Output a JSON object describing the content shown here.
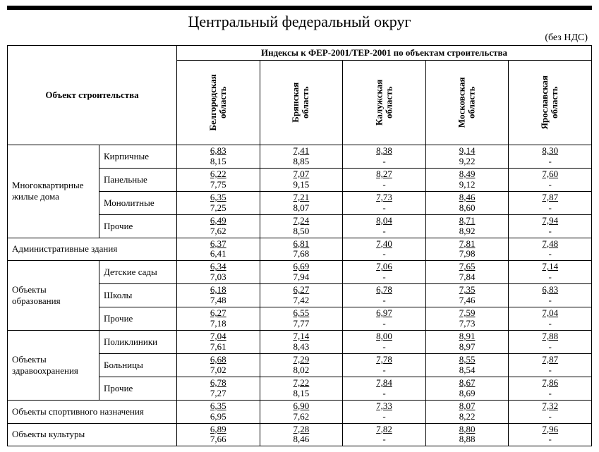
{
  "title": "Центральный федеральный округ",
  "note": "(без НДС)",
  "headers": {
    "object": "Объект строительства",
    "indices": "Индексы к ФЕР-2001/ТЕР-2001 по объектам строительства",
    "regions": [
      "Белгородская область",
      "Брянская область",
      "Калужская область",
      "Московская область",
      "Ярославская область"
    ]
  },
  "groups": [
    {
      "name": "Многоквартирные жилые дома",
      "rows": [
        {
          "sub": "Кирпичные",
          "vals": [
            [
              "6,83",
              "8,15"
            ],
            [
              "7,41",
              "8,85"
            ],
            [
              "8,38",
              "-"
            ],
            [
              "9,14",
              "9,22"
            ],
            [
              "8,30",
              "-"
            ]
          ]
        },
        {
          "sub": "Панельные",
          "vals": [
            [
              "6,22",
              "7,75"
            ],
            [
              "7,07",
              "9,15"
            ],
            [
              "8,27",
              "-"
            ],
            [
              "8,49",
              "9,12"
            ],
            [
              "7,60",
              "-"
            ]
          ]
        },
        {
          "sub": "Монолитные",
          "vals": [
            [
              "6,35",
              "7,25"
            ],
            [
              "7,21",
              "8,07"
            ],
            [
              "7,73",
              "-"
            ],
            [
              "8,46",
              "8,60"
            ],
            [
              "7,87",
              "-"
            ]
          ]
        },
        {
          "sub": "Прочие",
          "vals": [
            [
              "6,49",
              "7,62"
            ],
            [
              "7,24",
              "8,50"
            ],
            [
              "8,04",
              "-"
            ],
            [
              "8,71",
              "8,92"
            ],
            [
              "7,94",
              "-"
            ]
          ]
        }
      ]
    },
    {
      "name": "Административные здания",
      "rows": [
        {
          "sub": null,
          "vals": [
            [
              "6,37",
              "6,41"
            ],
            [
              "6,81",
              "7,68"
            ],
            [
              "7,40",
              "-"
            ],
            [
              "7,81",
              "7,98"
            ],
            [
              "7,48",
              "-"
            ]
          ]
        }
      ]
    },
    {
      "name": "Объекты образования",
      "rows": [
        {
          "sub": "Детские сады",
          "vals": [
            [
              "6,34",
              "7,03"
            ],
            [
              "6,69",
              "7,94"
            ],
            [
              "7,06",
              "-"
            ],
            [
              "7,65",
              "7,84"
            ],
            [
              "7,14",
              "-"
            ]
          ]
        },
        {
          "sub": "Школы",
          "vals": [
            [
              "6,18",
              "7,48"
            ],
            [
              "6,27",
              "7,42"
            ],
            [
              "6,78",
              "-"
            ],
            [
              "7,35",
              "7,46"
            ],
            [
              "6,83",
              "-"
            ]
          ]
        },
        {
          "sub": "Прочие",
          "vals": [
            [
              "6,27",
              "7,18"
            ],
            [
              "6,55",
              "7,77"
            ],
            [
              "6,97",
              "-"
            ],
            [
              "7,59",
              "7,73"
            ],
            [
              "7,04",
              "-"
            ]
          ]
        }
      ]
    },
    {
      "name": "Объекты здравоохранения",
      "rows": [
        {
          "sub": "Поликлиники",
          "vals": [
            [
              "7,04",
              "7,61"
            ],
            [
              "7,14",
              "8,43"
            ],
            [
              "8,00",
              "-"
            ],
            [
              "8,91",
              "8,97"
            ],
            [
              "7,88",
              "-"
            ]
          ]
        },
        {
          "sub": "Больницы",
          "vals": [
            [
              "6,68",
              "7,02"
            ],
            [
              "7,29",
              "8,02"
            ],
            [
              "7,78",
              "-"
            ],
            [
              "8,55",
              "8,54"
            ],
            [
              "7,87",
              "-"
            ]
          ]
        },
        {
          "sub": "Прочие",
          "vals": [
            [
              "6,78",
              "7,27"
            ],
            [
              "7,22",
              "8,15"
            ],
            [
              "7,84",
              "-"
            ],
            [
              "8,67",
              "8,69"
            ],
            [
              "7,86",
              "-"
            ]
          ]
        }
      ]
    },
    {
      "name": "Объекты спортивного назначения",
      "rows": [
        {
          "sub": null,
          "vals": [
            [
              "6,35",
              "6,95"
            ],
            [
              "6,90",
              "7,62"
            ],
            [
              "7,33",
              "-"
            ],
            [
              "8,07",
              "8,22"
            ],
            [
              "7,32",
              "-"
            ]
          ]
        }
      ]
    },
    {
      "name": "Объекты культуры",
      "rows": [
        {
          "sub": null,
          "vals": [
            [
              "6,89",
              "7,66"
            ],
            [
              "7,28",
              "8,46"
            ],
            [
              "7,82",
              "-"
            ],
            [
              "8,80",
              "8,88"
            ],
            [
              "7,96",
              "-"
            ]
          ]
        }
      ]
    }
  ]
}
